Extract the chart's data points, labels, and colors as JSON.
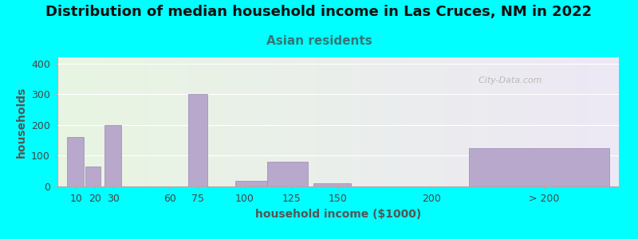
{
  "title": "Distribution of median household income in Las Cruces, NM in 2022",
  "subtitle": "Asian residents",
  "xlabel": "household income ($1000)",
  "ylabel": "households",
  "background_color": "#00FFFF",
  "plot_bg_gradient_left": "#e8f5e2",
  "plot_bg_gradient_right": "#ede8f5",
  "bar_color": "#b8a8cc",
  "bar_edge_color": "#9888b8",
  "values": [
    160,
    65,
    200,
    0,
    300,
    18,
    80,
    10,
    0,
    125
  ],
  "bar_left_edges": [
    5,
    15,
    25,
    55,
    70,
    95,
    112,
    137,
    185,
    220
  ],
  "bar_widths": [
    9,
    8,
    9,
    8,
    10,
    18,
    22,
    20,
    18,
    75
  ],
  "ylim": [
    0,
    420
  ],
  "yticks": [
    0,
    100,
    200,
    300,
    400
  ],
  "xtick_labels": [
    "10",
    "20",
    "30",
    "60",
    "75",
    "100",
    "125",
    "150",
    "200",
    "> 200"
  ],
  "xtick_positions": [
    10,
    20,
    30,
    60,
    75,
    100,
    125,
    150,
    200,
    260
  ],
  "xlim": [
    0,
    300
  ],
  "title_fontsize": 13,
  "subtitle_fontsize": 11,
  "axis_label_fontsize": 10,
  "tick_fontsize": 9,
  "watermark_text": "  City-Data.com"
}
